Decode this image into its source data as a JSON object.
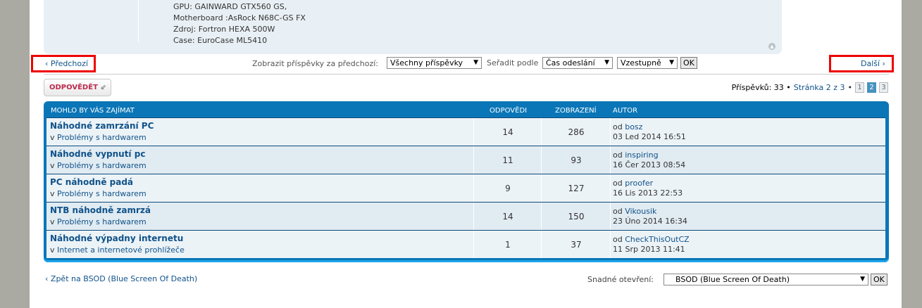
{
  "signature": [
    "GPU: GAINWARD GTX560 GS,",
    "Motherboard :AsRock N68C-GS FX",
    "Zdroj: Fortron HEXA 500W",
    "Case: EuroCase ML5410"
  ],
  "nav": {
    "prev": "Předchozí",
    "next": "Další",
    "show_label": "Zobrazit příspěvky za předchozí:",
    "show_value": "Všechny příspěvky",
    "sort_label": "Seřadit podle",
    "sort_value": "Čas odeslání",
    "order_value": "Vzestupně",
    "ok": "OK"
  },
  "reply_button": "ODPOVĚDĚT",
  "pagination": {
    "posts_label": "Příspěvků: 33 •",
    "page_text": "Stránka 2 z 3",
    "sep": "•",
    "pages": [
      "1",
      "2",
      "3"
    ],
    "current": "2"
  },
  "table": {
    "headers": [
      "MOHLO BY VÁS ZAJÍMAT",
      "ODPOVĚDI",
      "ZOBRAZENÍ",
      "AUTOR"
    ],
    "rows": [
      {
        "title": "Náhodné zamrzání PC",
        "forum_prefix": "v",
        "forum": "Problémy s hardwarem",
        "replies": "14",
        "views": "286",
        "by": "od",
        "author": "bosz",
        "date": "03 Led 2014 16:51"
      },
      {
        "title": "Náhodné vypnutí pc",
        "forum_prefix": "v",
        "forum": "Problémy s hardwarem",
        "replies": "11",
        "views": "93",
        "by": "od",
        "author": "inspiring",
        "date": "16 Čer 2013 08:54"
      },
      {
        "title": "PC náhodně padá",
        "forum_prefix": "v",
        "forum": "Problémy s hardwarem",
        "replies": "9",
        "views": "127",
        "by": "od",
        "author": "proofer",
        "date": "16 Lis 2013 22:53"
      },
      {
        "title": "NTB náhodně zamrzá",
        "forum_prefix": "v",
        "forum": "Problémy s hardwarem",
        "replies": "14",
        "views": "150",
        "by": "od",
        "author": "Vikousik",
        "date": "23 Úno 2014 16:34"
      },
      {
        "title": "Náhodné výpadny internetu",
        "forum_prefix": "v",
        "forum": "Internet a internetové prohlížeče",
        "replies": "1",
        "views": "37",
        "by": "od",
        "author": "CheckThisOutCZ",
        "date": "11 Srp 2013 11:41"
      }
    ]
  },
  "footer": {
    "back": "Zpět na BSOD (Blue Screen Of Death)",
    "jump_label": "Snadné otevření:",
    "jump_value": "BSOD (Blue Screen Of Death)",
    "ok": "OK"
  },
  "colors": {
    "header": "#0a76b7",
    "link": "#105289",
    "reply": "#bc2a4d",
    "highlight": "#e00000"
  }
}
